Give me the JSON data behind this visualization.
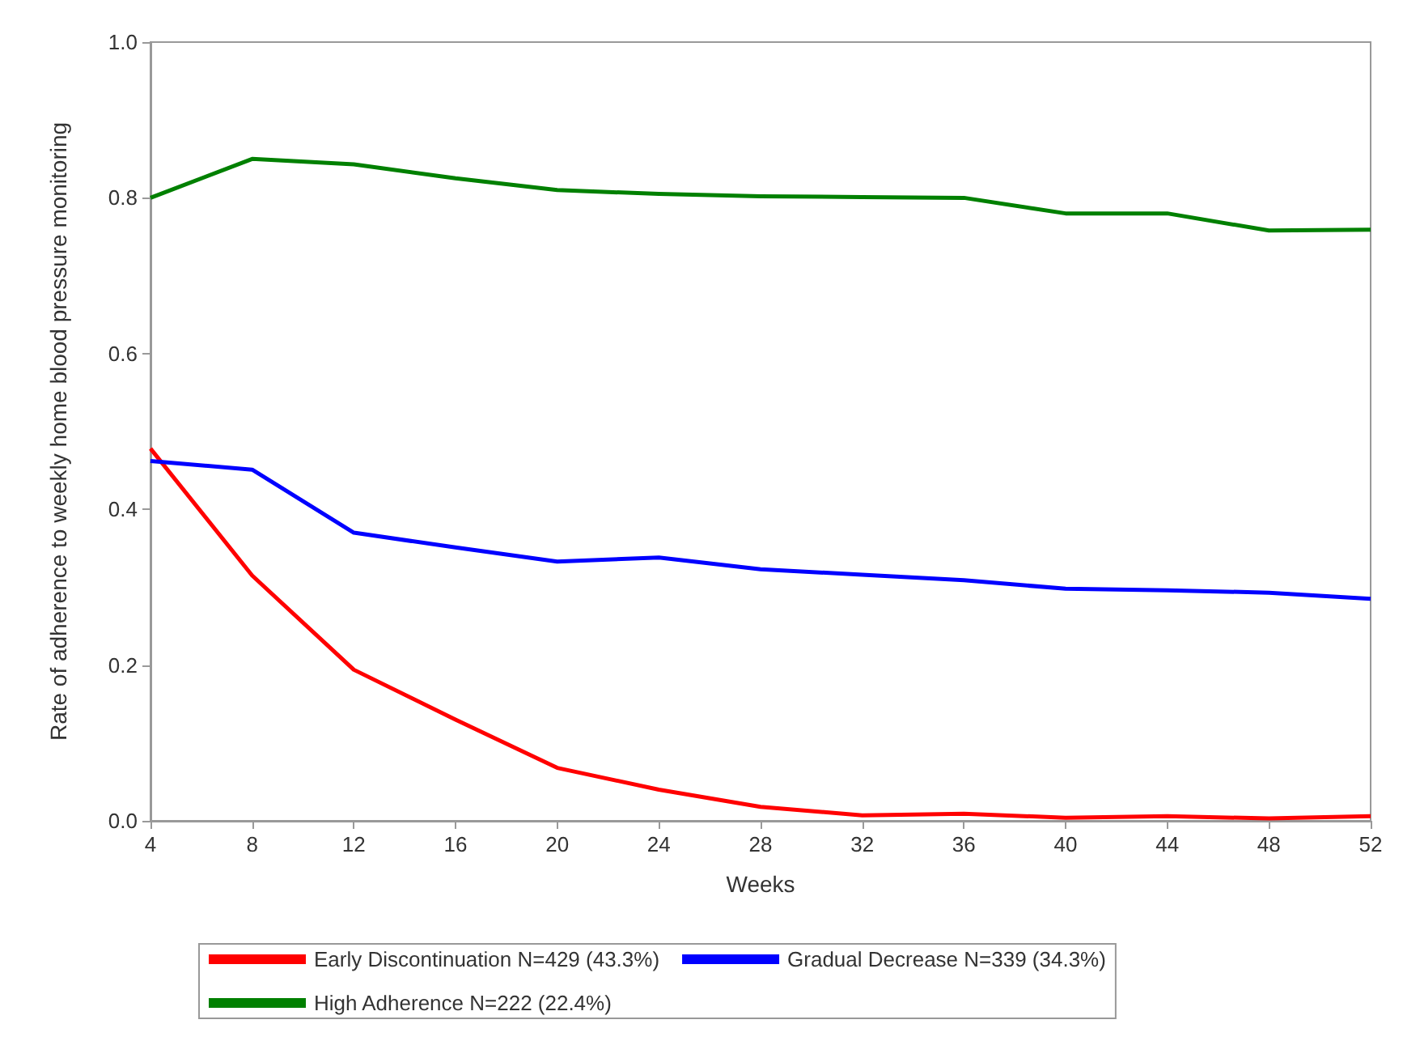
{
  "chart_data": {
    "type": "line",
    "xlabel": "Weeks",
    "ylabel": "Rate of adherence to weekly home blood pressure monitoring",
    "x": [
      4,
      8,
      12,
      16,
      20,
      24,
      28,
      32,
      36,
      40,
      44,
      48,
      52
    ],
    "series": [
      {
        "name": "Early Discontinuation N=429 (43.3%)",
        "color": "#ff0000",
        "values": [
          0.478,
          0.315,
          0.194,
          0.13,
          0.068,
          0.04,
          0.018,
          0.007,
          0.009,
          0.004,
          0.006,
          0.003,
          0.006
        ]
      },
      {
        "name": "Gradual Decrease N=339 (34.3%)",
        "color": "#0000ff",
        "values": [
          0.462,
          0.451,
          0.37,
          0.351,
          0.333,
          0.338,
          0.323,
          0.316,
          0.309,
          0.298,
          0.296,
          0.293,
          0.285
        ]
      },
      {
        "name": "High Adherence N=222 (22.4%)",
        "color": "#008000",
        "values": [
          0.8,
          0.85,
          0.843,
          0.825,
          0.81,
          0.805,
          0.802,
          0.801,
          0.8,
          0.78,
          0.78,
          0.758,
          0.759
        ]
      }
    ],
    "xlim": [
      4,
      52
    ],
    "xticks": [
      4,
      8,
      12,
      16,
      20,
      24,
      28,
      32,
      36,
      40,
      44,
      48,
      52
    ],
    "ylim": [
      0,
      1
    ],
    "yticks": [
      {
        "value": 0,
        "label": "0.0"
      },
      {
        "value": 0.2,
        "label": "0.2"
      },
      {
        "value": 0.4,
        "label": "0.4"
      },
      {
        "value": 0.6,
        "label": "0.6"
      },
      {
        "value": 0.8,
        "label": "0.8"
      },
      {
        "value": 1,
        "label": "1.0"
      }
    ],
    "grid": false,
    "legend": "bottom",
    "marker": "none",
    "line_style": "solid"
  }
}
